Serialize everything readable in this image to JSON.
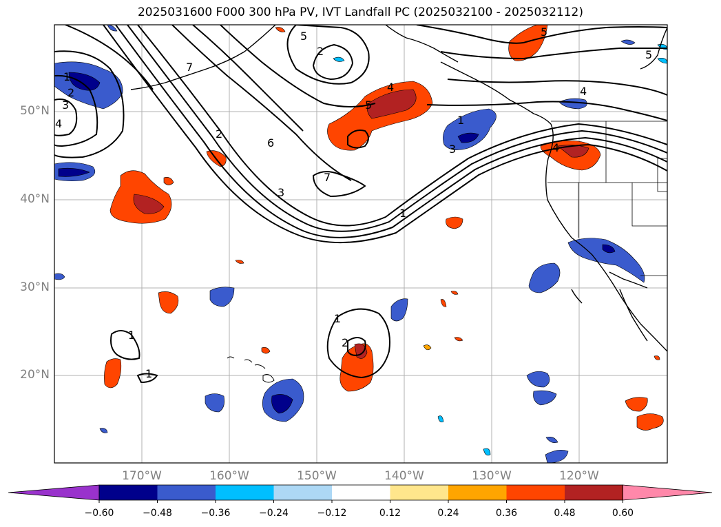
{
  "title": "2025031600 F000 300 hPa PV, IVT Landfall PC (2025032100 - 2025032112)",
  "lat_labels": [
    "50°N",
    "40°N",
    "30°N",
    "20°N"
  ],
  "lon_labels": [
    "170°W",
    "160°W",
    "150°W",
    "140°W",
    "130°W",
    "120°W"
  ],
  "colorbar": {
    "ticks": [
      "−0.60",
      "−0.48",
      "−0.36",
      "−0.24",
      "−0.12",
      "0.12",
      "0.24",
      "0.36",
      "0.48",
      "0.60"
    ],
    "colors": [
      "#9932cc",
      "#00008b",
      "#3a5bcd",
      "#00bfff",
      "#add8f5",
      "#ffffff",
      "#ffe68c",
      "#ffa500",
      "#ff4500",
      "#b22222",
      "#ff88aa"
    ],
    "extend": "both"
  },
  "contour_labels": [
    {
      "text": "2"
    },
    {
      "text": "5"
    },
    {
      "text": "4"
    },
    {
      "text": "7"
    },
    {
      "text": "2"
    },
    {
      "text": "6"
    },
    {
      "text": "3"
    },
    {
      "text": "7"
    },
    {
      "text": "1"
    },
    {
      "text": "1"
    },
    {
      "text": "2"
    },
    {
      "text": "1"
    },
    {
      "text": "1"
    },
    {
      "text": "4"
    },
    {
      "text": "5"
    },
    {
      "text": "4"
    },
    {
      "text": "5"
    },
    {
      "text": "1"
    },
    {
      "text": "3"
    },
    {
      "text": "5"
    },
    {
      "text": "1"
    },
    {
      "text": "2"
    },
    {
      "text": "3"
    },
    {
      "text": "4"
    }
  ]
}
